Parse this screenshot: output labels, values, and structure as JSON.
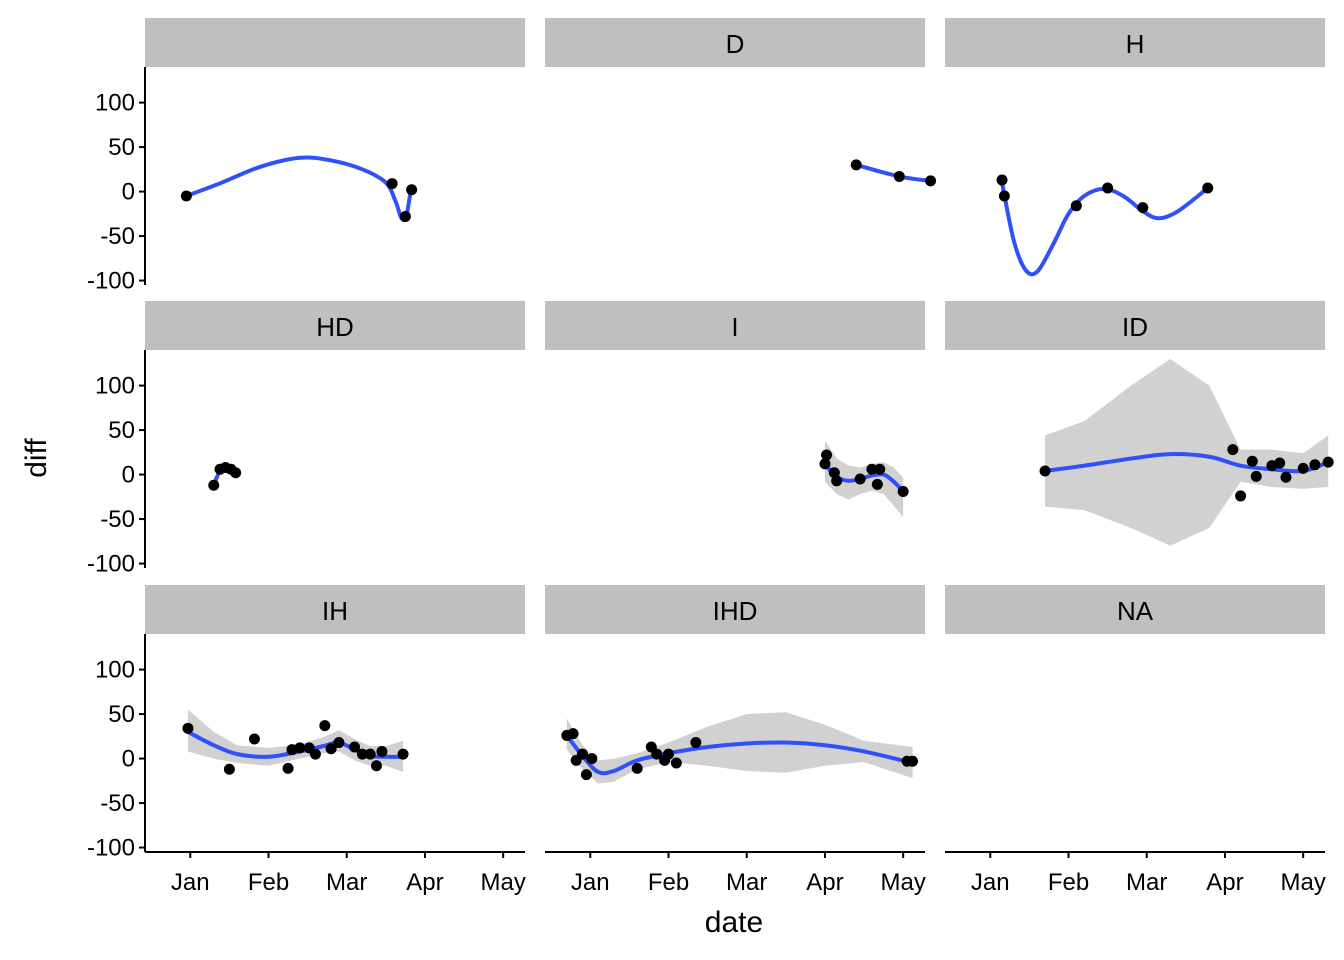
{
  "colors": {
    "strip": "#bfbfbf",
    "point": "#000000",
    "smooth_line": "#3050f8",
    "ribbon": "#cccccc",
    "axis": "#000000"
  },
  "chart_data": {
    "type": "scatter",
    "facet_wrap": true,
    "x_axis": {
      "label": "date",
      "ticks": [
        "Jan",
        "Feb",
        "Mar",
        "Apr",
        "May"
      ],
      "range_month": [
        0.6,
        5.1
      ]
    },
    "y_axis": {
      "label": "diff",
      "ticks": [
        "100",
        "50",
        "0",
        "-50",
        "-100"
      ],
      "ylim": [
        -105,
        140
      ]
    },
    "grid": false,
    "panels": [
      {
        "strip": "",
        "points": [
          [
            0.95,
            -5
          ],
          [
            3.58,
            9
          ],
          [
            3.75,
            -28
          ],
          [
            3.83,
            2
          ]
        ],
        "smooth": [
          [
            0.95,
            -5
          ],
          [
            1.4,
            10
          ],
          [
            1.9,
            28
          ],
          [
            2.4,
            38
          ],
          [
            2.8,
            35
          ],
          [
            3.2,
            25
          ],
          [
            3.5,
            10
          ],
          [
            3.62,
            -10
          ],
          [
            3.7,
            -30
          ],
          [
            3.76,
            -28
          ],
          [
            3.82,
            2
          ]
        ],
        "ribbon": null
      },
      {
        "strip": "D",
        "points": [
          [
            4.4,
            30
          ],
          [
            4.95,
            17
          ],
          [
            5.35,
            12
          ]
        ],
        "smooth": [
          [
            4.4,
            30
          ],
          [
            4.95,
            17
          ],
          [
            5.35,
            12
          ]
        ],
        "ribbon": null
      },
      {
        "strip": "H",
        "points": [
          [
            1.15,
            13
          ],
          [
            1.18,
            -5
          ],
          [
            2.1,
            -16
          ],
          [
            2.5,
            4
          ],
          [
            2.95,
            -18
          ],
          [
            3.78,
            4
          ]
        ],
        "smooth": [
          [
            1.15,
            10
          ],
          [
            1.3,
            -55
          ],
          [
            1.45,
            -88
          ],
          [
            1.6,
            -90
          ],
          [
            1.8,
            -60
          ],
          [
            2.0,
            -25
          ],
          [
            2.2,
            -5
          ],
          [
            2.45,
            3
          ],
          [
            2.7,
            -5
          ],
          [
            2.95,
            -22
          ],
          [
            3.15,
            -30
          ],
          [
            3.4,
            -22
          ],
          [
            3.78,
            4
          ]
        ],
        "ribbon": null
      },
      {
        "strip": "HD",
        "points": [
          [
            1.3,
            -12
          ],
          [
            1.38,
            6
          ],
          [
            1.45,
            8
          ],
          [
            1.52,
            6
          ],
          [
            1.58,
            2
          ]
        ],
        "smooth": [
          [
            1.3,
            -12
          ],
          [
            1.34,
            -3
          ],
          [
            1.38,
            4
          ],
          [
            1.45,
            7
          ],
          [
            1.52,
            5
          ],
          [
            1.58,
            2
          ]
        ],
        "ribbon": null
      },
      {
        "strip": "I",
        "points": [
          [
            4.0,
            12
          ],
          [
            4.02,
            22
          ],
          [
            4.12,
            2
          ],
          [
            4.15,
            -7
          ],
          [
            4.45,
            -5
          ],
          [
            4.6,
            6
          ],
          [
            4.67,
            -11
          ],
          [
            4.7,
            6
          ],
          [
            5.0,
            -19
          ]
        ],
        "smooth": [
          [
            4.0,
            15
          ],
          [
            4.07,
            4
          ],
          [
            4.15,
            -3
          ],
          [
            4.3,
            -7
          ],
          [
            4.45,
            -5
          ],
          [
            4.6,
            -1
          ],
          [
            4.75,
            0
          ],
          [
            4.88,
            -8
          ],
          [
            5.0,
            -19
          ]
        ],
        "ribbon": [
          [
            4.0,
            38,
            -8
          ],
          [
            4.15,
            18,
            -22
          ],
          [
            4.3,
            10,
            -28
          ],
          [
            4.45,
            8,
            -22
          ],
          [
            4.6,
            12,
            -18
          ],
          [
            4.75,
            14,
            -22
          ],
          [
            4.88,
            8,
            -35
          ],
          [
            5.0,
            -4,
            -48
          ]
        ]
      },
      {
        "strip": "ID",
        "points": [
          [
            1.7,
            4
          ],
          [
            4.1,
            28
          ],
          [
            4.2,
            -24
          ],
          [
            4.35,
            15
          ],
          [
            4.4,
            -2
          ],
          [
            4.6,
            10
          ],
          [
            4.7,
            13
          ],
          [
            4.78,
            -3
          ],
          [
            5.0,
            7
          ],
          [
            5.15,
            11
          ],
          [
            5.32,
            14
          ]
        ],
        "smooth": [
          [
            1.7,
            4
          ],
          [
            2.2,
            10
          ],
          [
            2.8,
            18
          ],
          [
            3.3,
            23
          ],
          [
            3.8,
            20
          ],
          [
            4.2,
            10
          ],
          [
            4.6,
            6
          ],
          [
            5.0,
            4
          ],
          [
            5.32,
            14
          ]
        ],
        "ribbon": [
          [
            1.7,
            44,
            -36
          ],
          [
            2.2,
            60,
            -40
          ],
          [
            2.8,
            100,
            -60
          ],
          [
            3.3,
            130,
            -80
          ],
          [
            3.8,
            100,
            -60
          ],
          [
            4.2,
            28,
            -8
          ],
          [
            4.6,
            28,
            -14
          ],
          [
            5.0,
            24,
            -16
          ],
          [
            5.32,
            44,
            -14
          ]
        ]
      },
      {
        "strip": "IH",
        "points": [
          [
            0.97,
            34
          ],
          [
            1.5,
            -12
          ],
          [
            1.82,
            22
          ],
          [
            2.25,
            -11
          ],
          [
            2.3,
            10
          ],
          [
            2.4,
            12
          ],
          [
            2.52,
            12
          ],
          [
            2.6,
            5
          ],
          [
            2.72,
            37
          ],
          [
            2.8,
            11
          ],
          [
            2.9,
            18
          ],
          [
            3.1,
            13
          ],
          [
            3.2,
            5
          ],
          [
            3.3,
            5
          ],
          [
            3.38,
            -8
          ],
          [
            3.45,
            8
          ],
          [
            3.72,
            5
          ]
        ],
        "smooth": [
          [
            0.97,
            30
          ],
          [
            1.3,
            15
          ],
          [
            1.6,
            5
          ],
          [
            2.0,
            2
          ],
          [
            2.4,
            8
          ],
          [
            2.7,
            14
          ],
          [
            2.9,
            18
          ],
          [
            3.1,
            10
          ],
          [
            3.3,
            3
          ],
          [
            3.5,
            2
          ],
          [
            3.72,
            2
          ]
        ],
        "ribbon": [
          [
            0.97,
            55,
            8
          ],
          [
            1.3,
            30,
            0
          ],
          [
            1.6,
            15,
            -5
          ],
          [
            2.0,
            12,
            -8
          ],
          [
            2.4,
            16,
            0
          ],
          [
            2.7,
            24,
            6
          ],
          [
            2.9,
            32,
            8
          ],
          [
            3.1,
            22,
            -2
          ],
          [
            3.3,
            14,
            -8
          ],
          [
            3.5,
            14,
            -8
          ],
          [
            3.72,
            20,
            -15
          ]
        ]
      },
      {
        "strip": "IHD",
        "points": [
          [
            0.7,
            26
          ],
          [
            0.78,
            28
          ],
          [
            0.82,
            -2
          ],
          [
            0.9,
            5
          ],
          [
            0.95,
            -18
          ],
          [
            1.02,
            0
          ],
          [
            1.6,
            -11
          ],
          [
            1.78,
            13
          ],
          [
            1.85,
            5
          ],
          [
            1.95,
            -2
          ],
          [
            2.0,
            5
          ],
          [
            2.1,
            -5
          ],
          [
            2.35,
            18
          ],
          [
            5.05,
            -3
          ],
          [
            5.12,
            -3
          ]
        ],
        "smooth": [
          [
            0.7,
            26
          ],
          [
            0.9,
            3
          ],
          [
            1.1,
            -15
          ],
          [
            1.3,
            -14
          ],
          [
            1.6,
            -2
          ],
          [
            2.0,
            6
          ],
          [
            2.5,
            13
          ],
          [
            3.0,
            17
          ],
          [
            3.5,
            18
          ],
          [
            4.0,
            15
          ],
          [
            4.5,
            8
          ],
          [
            5.12,
            -5
          ]
        ],
        "ribbon": [
          [
            0.7,
            45,
            10
          ],
          [
            0.9,
            15,
            -12
          ],
          [
            1.1,
            -2,
            -28
          ],
          [
            1.3,
            0,
            -26
          ],
          [
            1.6,
            6,
            -12
          ],
          [
            2.0,
            18,
            -4
          ],
          [
            2.5,
            36,
            -8
          ],
          [
            3.0,
            50,
            -14
          ],
          [
            3.5,
            52,
            -16
          ],
          [
            4.0,
            38,
            -8
          ],
          [
            4.5,
            20,
            -4
          ],
          [
            5.12,
            13,
            -22
          ]
        ]
      },
      {
        "strip": "NA",
        "points": [],
        "smooth": [],
        "ribbon": null
      }
    ]
  }
}
